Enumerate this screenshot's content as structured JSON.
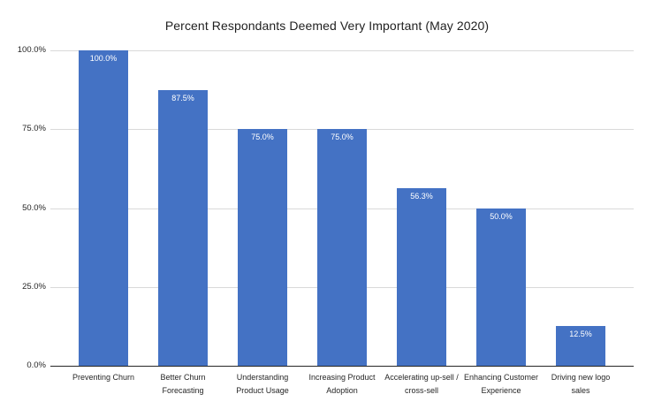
{
  "chart_data": {
    "type": "bar",
    "title": "Percent Respondants Deemed Very Important (May 2020)",
    "categories": [
      "Preventing Churn",
      "Better Churn\nForecasting",
      "Understanding\nProduct Usage",
      "Increasing Product\nAdoption",
      "Accelerating up-sell /\ncross-sell",
      "Enhancing Customer\nExperience",
      "Driving new logo\nsales"
    ],
    "values": [
      100.0,
      87.5,
      75.0,
      75.0,
      56.3,
      50.0,
      12.5
    ],
    "value_labels": [
      "100.0%",
      "87.5%",
      "75.0%",
      "75.0%",
      "56.3%",
      "50.0%",
      "12.5%"
    ],
    "y_ticks": [
      "100.0%",
      "75.0%",
      "50.0%",
      "25.0%",
      "0.0%"
    ],
    "ylim": [
      0,
      100
    ],
    "xlabel": "",
    "ylabel": "",
    "grid": "horizontal",
    "legend": "none",
    "bar_color": "#4472C4",
    "gridline_color": "#D9D9D9",
    "axis_line_color": "#262626"
  }
}
